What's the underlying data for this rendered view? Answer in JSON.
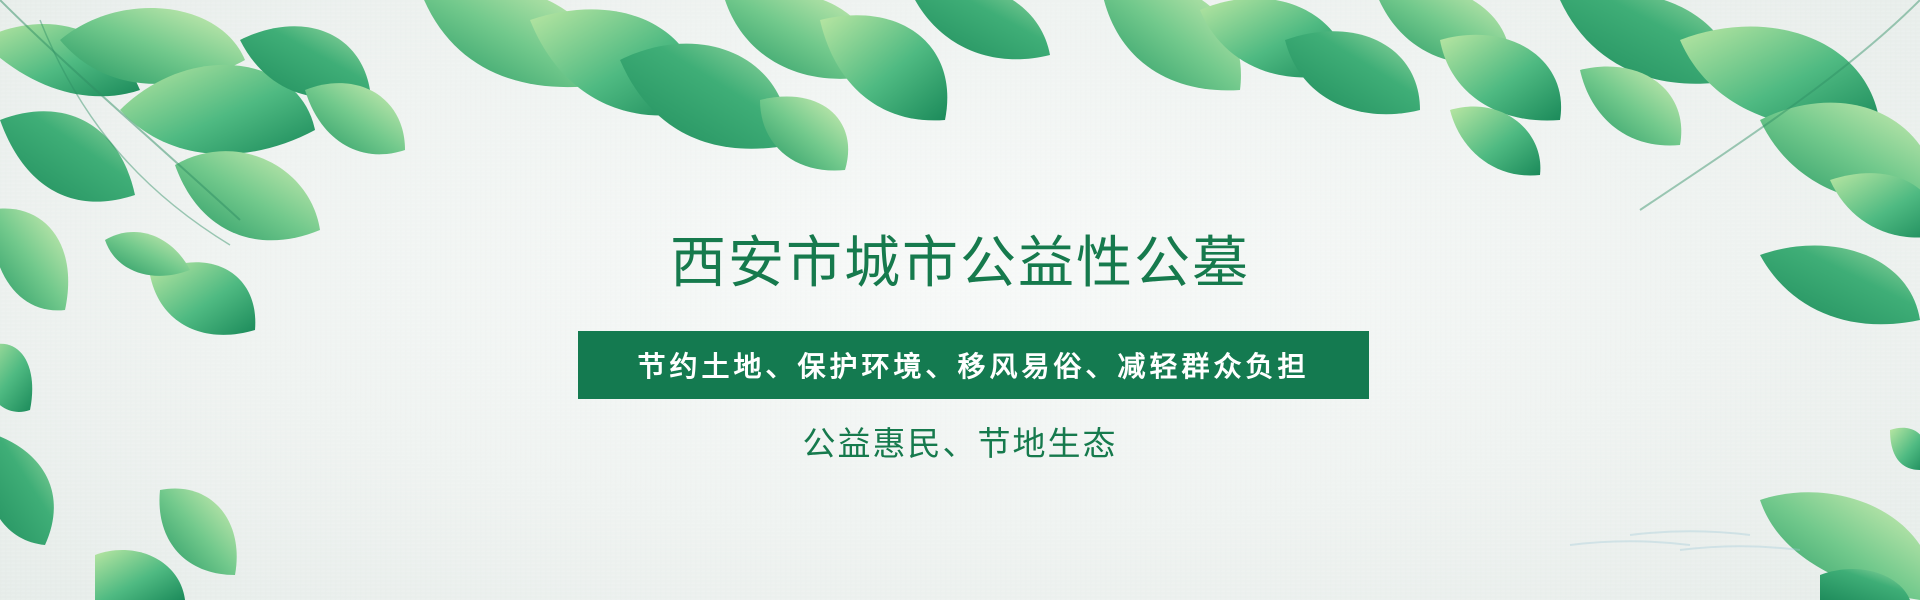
{
  "banner": {
    "title": "西安市城市公益性公墓",
    "slogan": "节约土地、保护环境、移风易俗、减轻群众负担",
    "subtitle": "公益惠民、节地生态"
  },
  "colors": {
    "primary_green": "#147a50",
    "text_green": "#167a4d",
    "background": "#eef2ef",
    "leaf_light": "#9bd89a",
    "leaf_mid": "#4fba82",
    "leaf_dark": "#1b8a5a"
  },
  "icons": {
    "decoration": "leaf-cluster-illustration"
  }
}
